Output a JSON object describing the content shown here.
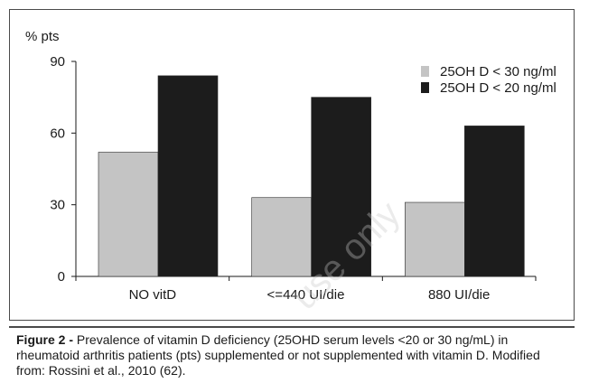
{
  "chart_data": {
    "type": "bar",
    "ylabel": "% pts",
    "ylim": [
      0,
      90
    ],
    "yticks": [
      0,
      30,
      60,
      90
    ],
    "categories": [
      "NO vitD",
      "<=440 UI/die",
      "880 UI/die"
    ],
    "series": [
      {
        "name": "25OH D < 30 ng/ml",
        "color": "#c4c4c4",
        "values": [
          52,
          33,
          31
        ]
      },
      {
        "name": "25OH D < 20 ng/ml",
        "color": "#1c1c1c",
        "values": [
          84,
          75,
          63
        ]
      }
    ],
    "legend_position": "top-right",
    "grid": false
  },
  "caption": {
    "label": "Figure 2 -",
    "text": "Prevalence of vitamin D deficiency (25OHD serum levels <20 or 30 ng/mL) in rheumatoid arthritis patients (pts) supplemented or not supplemented with vitamin D. Modified from: Rossini et al., 2010 (62)."
  },
  "watermark": "use only"
}
